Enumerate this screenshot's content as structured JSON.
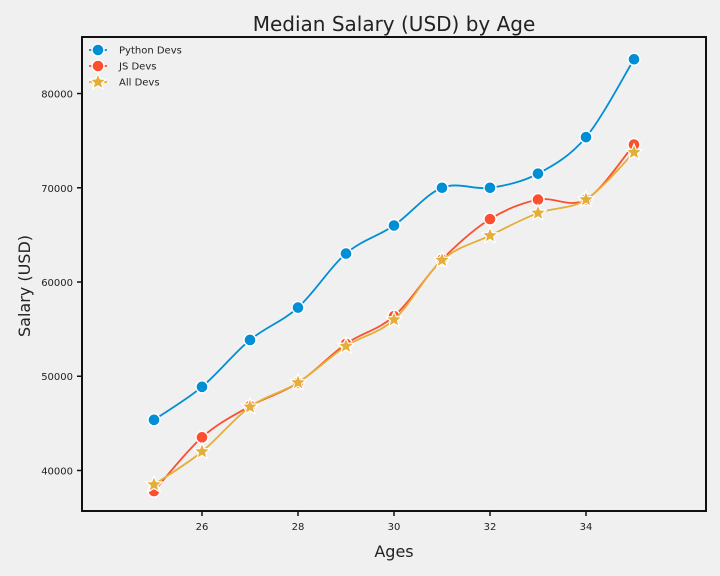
{
  "chart_data": {
    "type": "line",
    "title": "Median Salary (USD) by Age",
    "xlabel": "Ages",
    "ylabel": "Salary (USD)",
    "x": [
      25,
      26,
      27,
      28,
      29,
      30,
      31,
      32,
      33,
      34,
      35
    ],
    "xlim": [
      23.5,
      36.5
    ],
    "ylim": [
      35700,
      86000
    ],
    "xticks": [
      26,
      28,
      30,
      32,
      34
    ],
    "yticks": [
      40000,
      50000,
      60000,
      70000,
      80000
    ],
    "grid": false,
    "legend_position": "top-left",
    "series": [
      {
        "name": "Python Devs",
        "color": "#008fd5",
        "marker": "circle",
        "values": [
          45372,
          48876,
          53850,
          57287,
          63016,
          65998,
          70003,
          70000,
          71496,
          75370,
          83640
        ]
      },
      {
        "name": "JS Devs",
        "color": "#fc4f30",
        "marker": "circle",
        "values": [
          37810,
          43515,
          46823,
          49293,
          53437,
          56373,
          62375,
          66674,
          68745,
          68746,
          74583
        ]
      },
      {
        "name": "All Devs",
        "color": "#e5ae38",
        "marker": "star",
        "values": [
          38496,
          42000,
          46752,
          49320,
          53200,
          56000,
          62316,
          64928,
          67317,
          68748,
          73752
        ]
      }
    ]
  }
}
